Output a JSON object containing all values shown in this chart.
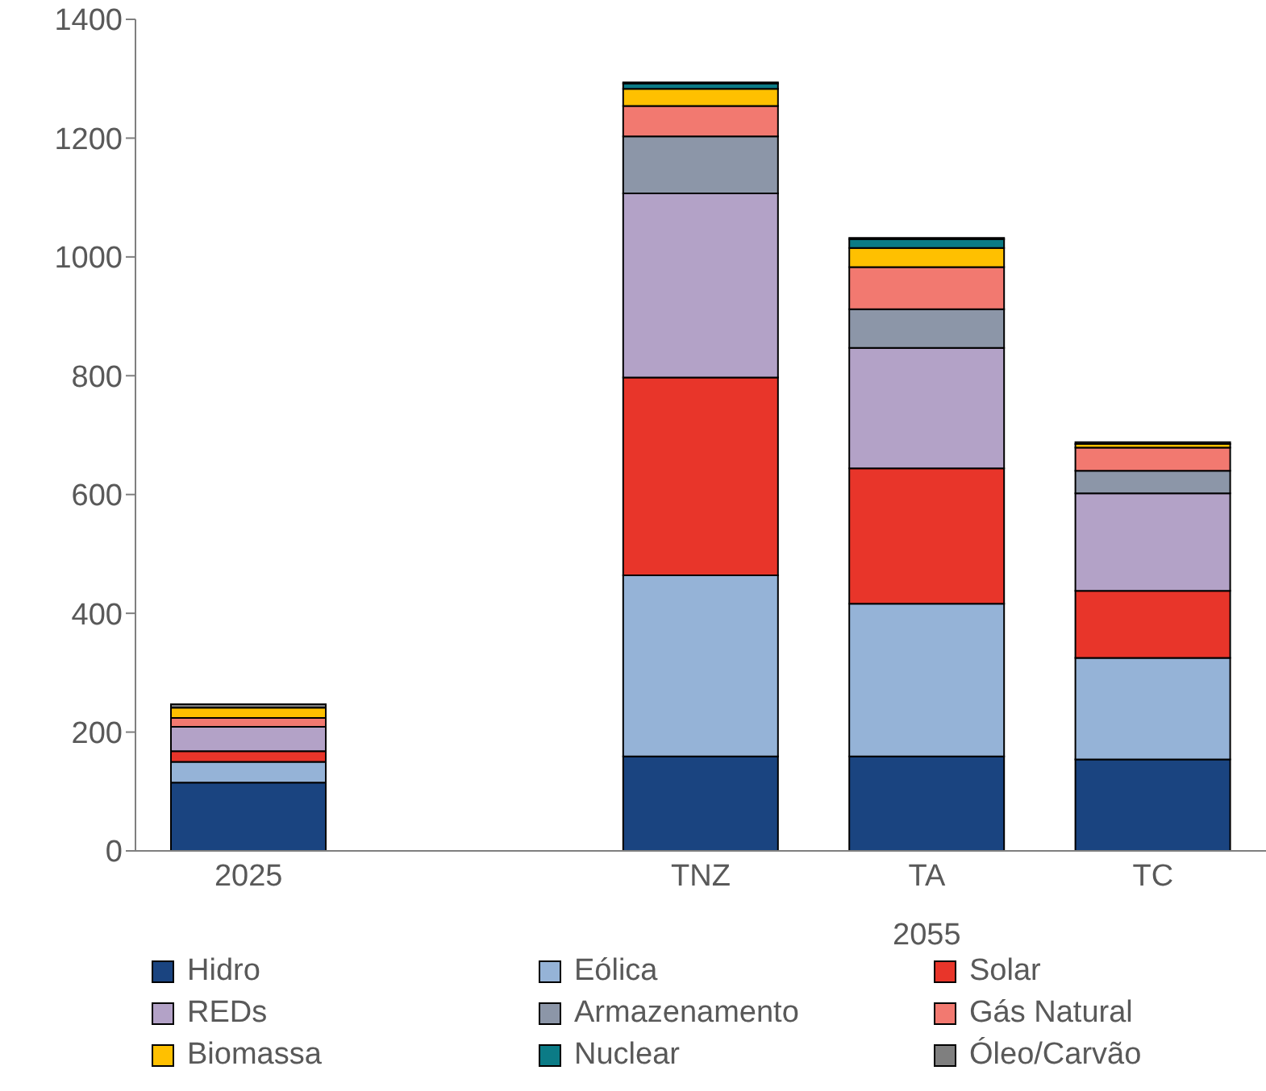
{
  "chart_data": {
    "type": "bar",
    "stacked": true,
    "categories": [
      "2025",
      null,
      "TNZ",
      "TA",
      "TC"
    ],
    "xlabel": "2055",
    "ylim": [
      0,
      1400
    ],
    "yticks": [
      0,
      200,
      400,
      600,
      800,
      1000,
      1200,
      1400
    ],
    "grid": false,
    "legend": "bottom",
    "series": [
      {
        "name": "Hidro",
        "color": "#1a4480",
        "values": [
          115,
          null,
          159,
          159,
          154
        ]
      },
      {
        "name": "Eólica",
        "color": "#95b3d7",
        "values": [
          35,
          null,
          305,
          257,
          171
        ]
      },
      {
        "name": "Solar",
        "color": "#e8352a",
        "values": [
          18,
          null,
          333,
          228,
          113
        ]
      },
      {
        "name": "REDs",
        "color": "#b3a2c7",
        "values": [
          41,
          null,
          310,
          203,
          164
        ]
      },
      {
        "name": "Armazenamento",
        "color": "#8c96a8",
        "values": [
          0,
          null,
          96,
          65,
          38
        ]
      },
      {
        "name": "Gás Natural",
        "color": "#f27970",
        "values": [
          15,
          null,
          51,
          71,
          39
        ]
      },
      {
        "name": "Biomassa",
        "color": "#ffc000",
        "values": [
          17,
          null,
          29,
          32,
          6
        ]
      },
      {
        "name": "Nuclear",
        "color": "#0b7b86",
        "values": [
          null,
          null,
          9,
          15,
          null
        ]
      },
      {
        "name": "Óleo/Carvão",
        "color": "#7f7f7f",
        "values": [
          6,
          null,
          2,
          2,
          3
        ]
      }
    ]
  }
}
